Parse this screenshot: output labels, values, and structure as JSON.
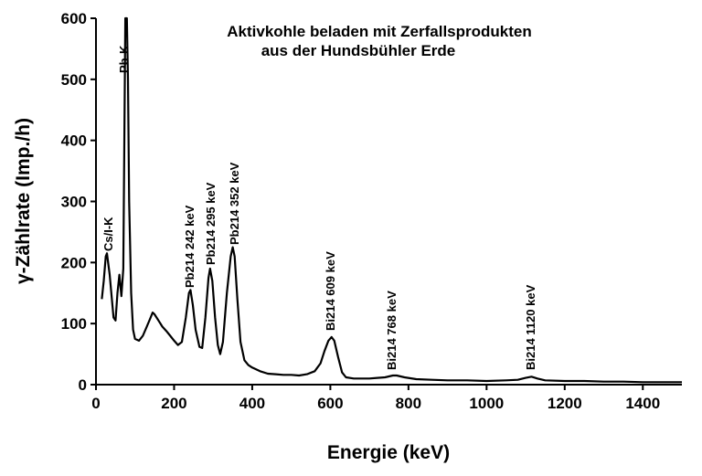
{
  "chart_data": {
    "type": "line",
    "title": [
      "Aktivkohle beladen mit Zerfallsprodukten",
      "aus der Hundsbühler Erde"
    ],
    "x_label": "Energie (keV)",
    "y_label": "γ-Zählrate (Imp./h)",
    "color": "#000000",
    "xlim": [
      0,
      1500
    ],
    "xticks": [
      0,
      200,
      400,
      600,
      800,
      1000,
      1200,
      1400
    ],
    "ylim": [
      0,
      600
    ],
    "yticks": [
      0,
      100,
      200,
      300,
      400,
      500,
      600
    ],
    "annotations": [
      "Cs/I-K",
      "Pb-K",
      "Pb214 242 keV",
      "Pb214 295 keV",
      "Pb214 352 keV",
      "Bi214 609 keV",
      "Bi214 768 keV",
      "Bi214 1120 keV"
    ],
    "x": [
      15,
      20,
      25,
      28,
      35,
      45,
      50,
      55,
      60,
      65,
      70,
      75,
      77,
      79,
      82,
      85,
      90,
      95,
      100,
      110,
      120,
      130,
      140,
      145,
      150,
      160,
      170,
      180,
      190,
      200,
      210,
      220,
      230,
      238,
      242,
      248,
      255,
      265,
      272,
      280,
      288,
      292,
      298,
      305,
      312,
      318,
      325,
      335,
      345,
      350,
      355,
      362,
      370,
      380,
      390,
      400,
      420,
      440,
      460,
      480,
      500,
      520,
      540,
      560,
      575,
      585,
      595,
      603,
      610,
      620,
      630,
      640,
      660,
      680,
      700,
      720,
      740,
      760,
      770,
      790,
      820,
      860,
      900,
      950,
      1000,
      1050,
      1080,
      1100,
      1115,
      1130,
      1150,
      1200,
      1250,
      1300,
      1350,
      1400,
      1450,
      1500
    ],
    "values": [
      140,
      170,
      210,
      215,
      180,
      110,
      105,
      150,
      180,
      145,
      190,
      600,
      600,
      600,
      500,
      300,
      150,
      90,
      75,
      72,
      80,
      95,
      110,
      118,
      115,
      105,
      95,
      88,
      80,
      72,
      65,
      70,
      110,
      150,
      155,
      130,
      90,
      62,
      60,
      110,
      175,
      190,
      170,
      110,
      65,
      50,
      70,
      150,
      210,
      225,
      210,
      140,
      70,
      40,
      32,
      28,
      22,
      18,
      17,
      16,
      16,
      15,
      17,
      22,
      35,
      55,
      72,
      78,
      72,
      45,
      20,
      12,
      10,
      10,
      10,
      11,
      12,
      15,
      15,
      12,
      9,
      8,
      7,
      7,
      6,
      7,
      8,
      11,
      13,
      10,
      7,
      6,
      6,
      5,
      5,
      4,
      4,
      4
    ]
  }
}
